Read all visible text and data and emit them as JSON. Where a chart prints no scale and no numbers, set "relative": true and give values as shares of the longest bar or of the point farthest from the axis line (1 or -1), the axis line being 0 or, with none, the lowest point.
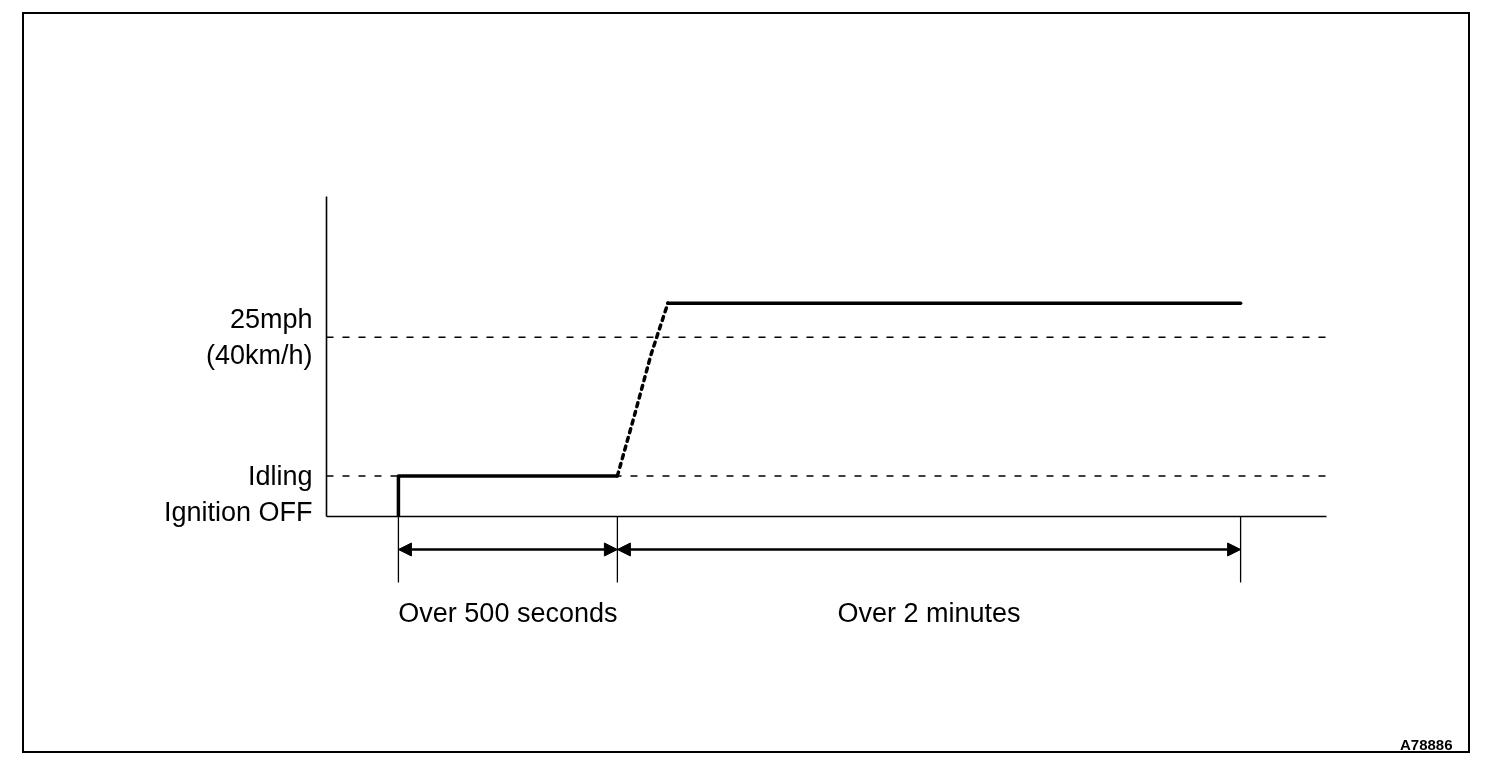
{
  "chart_data": {
    "type": "line",
    "relative": true,
    "categories": [
      null,
      null,
      null,
      null,
      null,
      null,
      null,
      null,
      null,
      null,
      null,
      null,
      null,
      null,
      null,
      null,
      null,
      null,
      null,
      null,
      null,
      null,
      null,
      null,
      null,
      null,
      null,
      null,
      null,
      null,
      null,
      null,
      null,
      null,
      null,
      null,
      null,
      null,
      null,
      null,
      null,
      null,
      null,
      null,
      null,
      null,
      null,
      null,
      null,
      null,
      null,
      null,
      null,
      null,
      null,
      null,
      null,
      null,
      null
    ],
    "series": [
      {
        "type": "step",
        "color": "#000000",
        "line_style": "solid",
        "values": [
          null,
          null,
          null,
          null,
          0,
          0.19,
          0.19,
          0.19,
          0.19,
          0.19,
          0.19,
          0.19,
          0.19,
          0.19,
          0.19,
          0.19,
          0.19,
          0.19,
          null,
          null,
          null,
          null,
          null,
          null,
          null,
          null,
          null,
          null,
          null,
          null,
          null,
          null,
          null,
          null,
          null,
          null,
          null,
          null,
          null,
          null,
          null,
          null,
          null,
          null,
          null,
          null,
          null,
          null,
          null,
          null,
          null,
          null,
          null,
          null,
          null,
          null,
          null,
          null,
          null
        ]
      },
      {
        "color": "#000000",
        "line_style": "dotted",
        "values": [
          null,
          null,
          null,
          null,
          null,
          null,
          null,
          null,
          null,
          null,
          null,
          null,
          null,
          null,
          null,
          null,
          null,
          0.19,
          0.47,
          0.76,
          1,
          null,
          null,
          null,
          null,
          null,
          null,
          null,
          null,
          null,
          null,
          null,
          null,
          null,
          null,
          null,
          null,
          null,
          null,
          null,
          null,
          null,
          null,
          null,
          null,
          null,
          null,
          null,
          null,
          null,
          null,
          null,
          null,
          null,
          null,
          null,
          null,
          null,
          null
        ]
      },
      {
        "color": "#000000",
        "line_style": "solid",
        "values": [
          null,
          null,
          null,
          null,
          null,
          null,
          null,
          null,
          null,
          null,
          null,
          null,
          null,
          null,
          null,
          null,
          null,
          null,
          null,
          null,
          1,
          1,
          1,
          1,
          1,
          1,
          1,
          1,
          1,
          1,
          1,
          1,
          1,
          1,
          1,
          1,
          1,
          1,
          1,
          1,
          1,
          1,
          1,
          1,
          1,
          1,
          1,
          1,
          1,
          1,
          1,
          1,
          1,
          1,
          1,
          null,
          null,
          null,
          null
        ]
      }
    ],
    "ref_lines": [
      {
        "axis": "y",
        "value": 0.19,
        "label": "Idling",
        "color": "#000000",
        "line_style": "dashed"
      },
      {
        "axis": "y",
        "value": 0.84,
        "label": "25mph\n(40km/h)",
        "color": "#000000",
        "line_style": "dashed"
      }
    ],
    "annotations": [
      "Ignition OFF",
      "Over 500 seconds",
      "Over 2 minutes",
      "A78886"
    ]
  }
}
